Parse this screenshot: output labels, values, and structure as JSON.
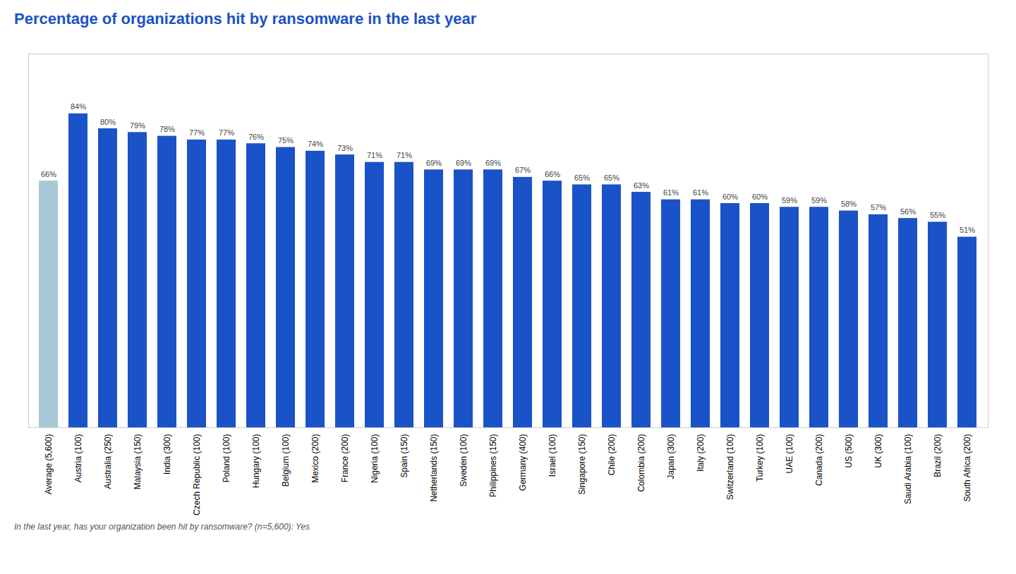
{
  "chart_data": {
    "type": "bar",
    "title": "Percentage of organizations hit by ransomware in the last year",
    "footnote": "In the last year, has your organization been hit by ransomware? (n=5,600): Yes",
    "categories": [
      "Average (5,600)",
      "Austria (100)",
      "Australia (250)",
      "Malaysia (150)",
      "India (300)",
      "Czech Republic (100)",
      "Poland (100)",
      "Hungary (100)",
      "Belgium (100)",
      "Mexico (200)",
      "France (200)",
      "Nigeria (100)",
      "Spain (150)",
      "Netherlands (150)",
      "Sweden (100)",
      "Philippines (150)",
      "Germany (400)",
      "Israel (100)",
      "Singapore (150)",
      "Chile (200)",
      "Colombia (200)",
      "Japan (300)",
      "Italy (200)",
      "Switzerland (100)",
      "Turkey (100)",
      "UAE (100)",
      "Canada (200)",
      "US (500)",
      "UK (300)",
      "Saudi Arabia (100)",
      "Brazil (200)",
      "South Africa (200)"
    ],
    "values": [
      66,
      84,
      80,
      79,
      78,
      77,
      77,
      76,
      75,
      74,
      73,
      71,
      71,
      69,
      69,
      69,
      67,
      66,
      65,
      65,
      63,
      61,
      61,
      60,
      60,
      59,
      59,
      58,
      57,
      56,
      55,
      51
    ],
    "value_labels": [
      "66%",
      "84%",
      "80%",
      "79%",
      "78%",
      "77%",
      "77%",
      "76%",
      "75%",
      "74%",
      "73%",
      "71%",
      "71%",
      "69%",
      "69%",
      "69%",
      "67%",
      "66%",
      "65%",
      "65%",
      "63%",
      "61%",
      "61%",
      "60%",
      "60%",
      "59%",
      "59%",
      "58%",
      "57%",
      "56%",
      "55%",
      "51%"
    ],
    "colors": [
      "#a8c8d8",
      "#1a52c7",
      "#1a52c7",
      "#1a52c7",
      "#1a52c7",
      "#1a52c7",
      "#1a52c7",
      "#1a52c7",
      "#1a52c7",
      "#1a52c7",
      "#1a52c7",
      "#1a52c7",
      "#1a52c7",
      "#1a52c7",
      "#1a52c7",
      "#1a52c7",
      "#1a52c7",
      "#1a52c7",
      "#1a52c7",
      "#1a52c7",
      "#1a52c7",
      "#1a52c7",
      "#1a52c7",
      "#1a52c7",
      "#1a52c7",
      "#1a52c7",
      "#1a52c7",
      "#1a52c7",
      "#1a52c7",
      "#1a52c7",
      "#1a52c7",
      "#1a52c7"
    ],
    "ylim": [
      0,
      100
    ],
    "data_labels": true,
    "tick_labels": "x",
    "grid": false
  }
}
